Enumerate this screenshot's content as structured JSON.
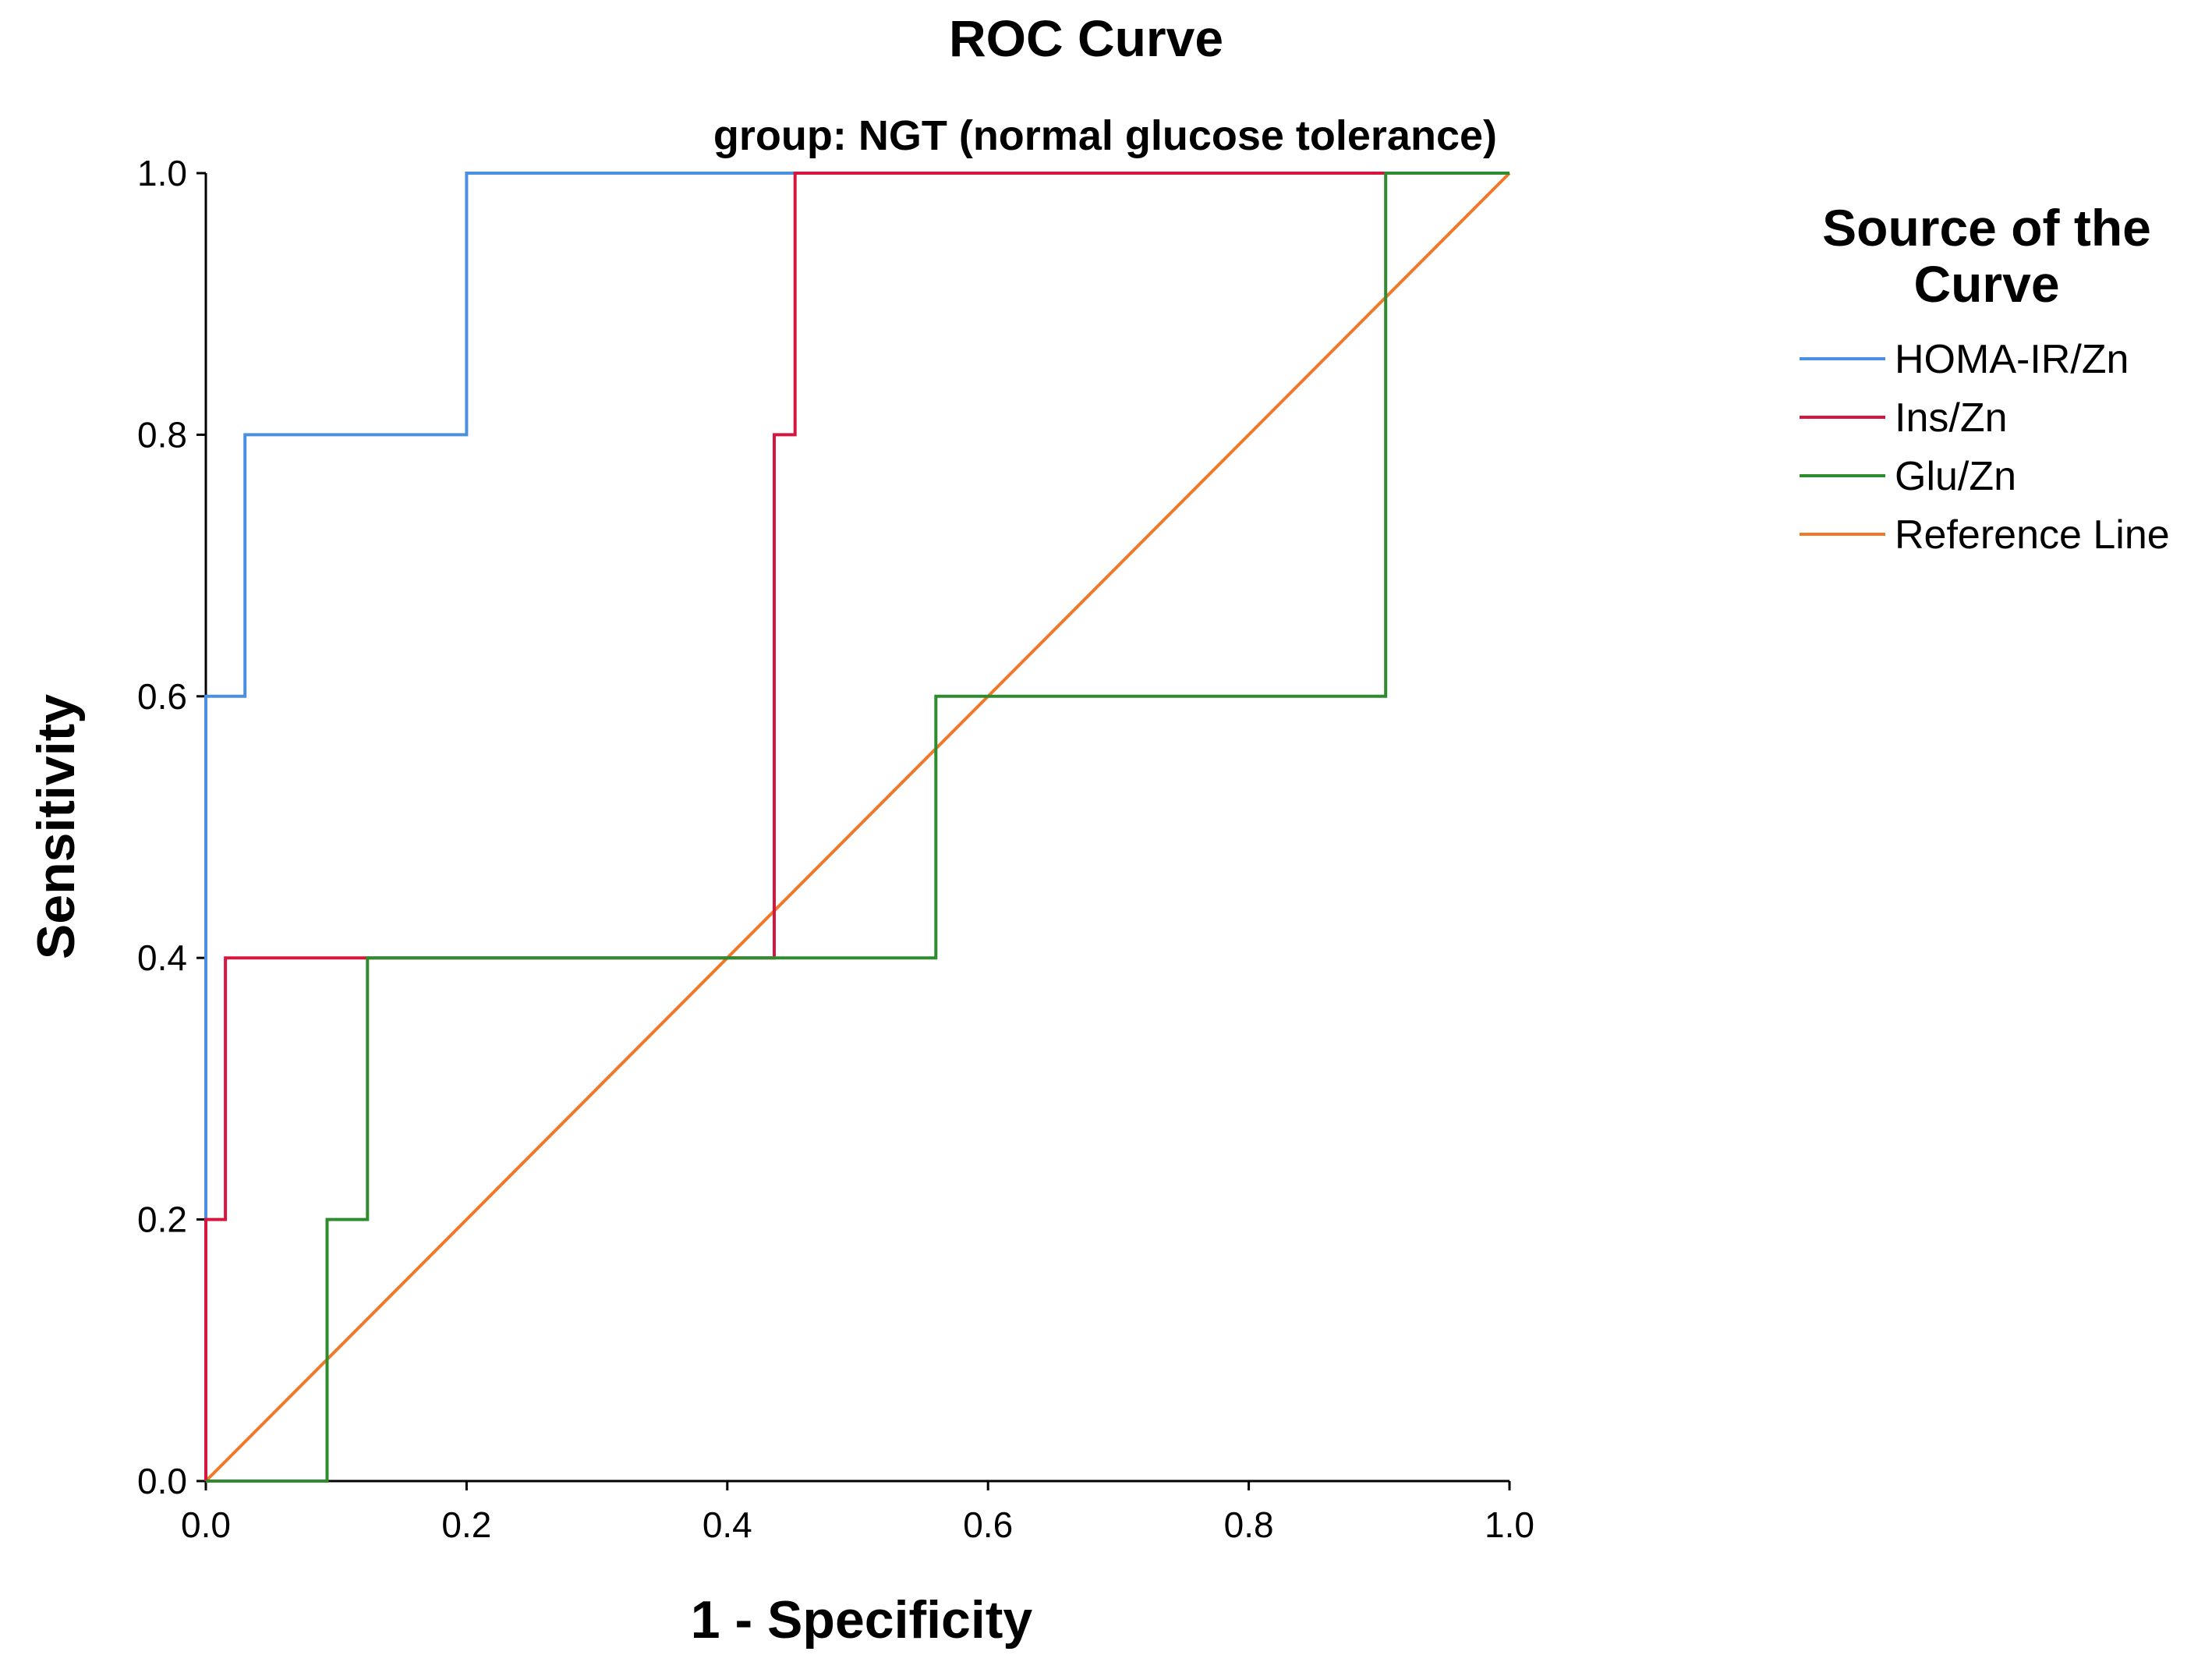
{
  "chart_data": {
    "type": "line",
    "title": "ROC Curve",
    "subtitle": "group: NGT (normal glucose tolerance)",
    "xlabel": "1 - Specificity",
    "ylabel": "Sensitivity",
    "xlim": [
      0,
      1
    ],
    "ylim": [
      0,
      1
    ],
    "x_ticks": [
      "0.0",
      "0.2",
      "0.4",
      "0.6",
      "0.8",
      "1.0"
    ],
    "y_ticks": [
      "0.0",
      "0.2",
      "0.4",
      "0.6",
      "0.8",
      "1.0"
    ],
    "grid": false,
    "legend": {
      "title_line1": "Source of the",
      "title_line2": "Curve",
      "placement": "right"
    },
    "series": [
      {
        "name": "HOMA-IR/Zn",
        "color": "#4a90e2",
        "step": true,
        "points": [
          [
            0,
            0
          ],
          [
            0,
            0.6
          ],
          [
            0.03,
            0.6
          ],
          [
            0.03,
            0.8
          ],
          [
            0.2,
            0.8
          ],
          [
            0.2,
            1.0
          ],
          [
            1,
            1
          ]
        ]
      },
      {
        "name": "Ins/Zn",
        "color": "#d6163e",
        "step": true,
        "points": [
          [
            0,
            0
          ],
          [
            0,
            0.2
          ],
          [
            0.015,
            0.2
          ],
          [
            0.015,
            0.4
          ],
          [
            0.436,
            0.4
          ],
          [
            0.436,
            0.8
          ],
          [
            0.452,
            0.8
          ],
          [
            0.452,
            1.0
          ],
          [
            1,
            1
          ]
        ]
      },
      {
        "name": "Glu/Zn",
        "color": "#2e8b2e",
        "step": true,
        "points": [
          [
            0,
            0
          ],
          [
            0.093,
            0
          ],
          [
            0.093,
            0.2
          ],
          [
            0.124,
            0.2
          ],
          [
            0.124,
            0.4
          ],
          [
            0.56,
            0.4
          ],
          [
            0.56,
            0.6
          ],
          [
            0.905,
            0.6
          ],
          [
            0.905,
            1.0
          ],
          [
            1,
            1
          ]
        ]
      },
      {
        "name": "Reference Line",
        "color": "#f07828",
        "step": false,
        "points": [
          [
            0,
            0
          ],
          [
            1,
            1
          ]
        ]
      }
    ]
  }
}
